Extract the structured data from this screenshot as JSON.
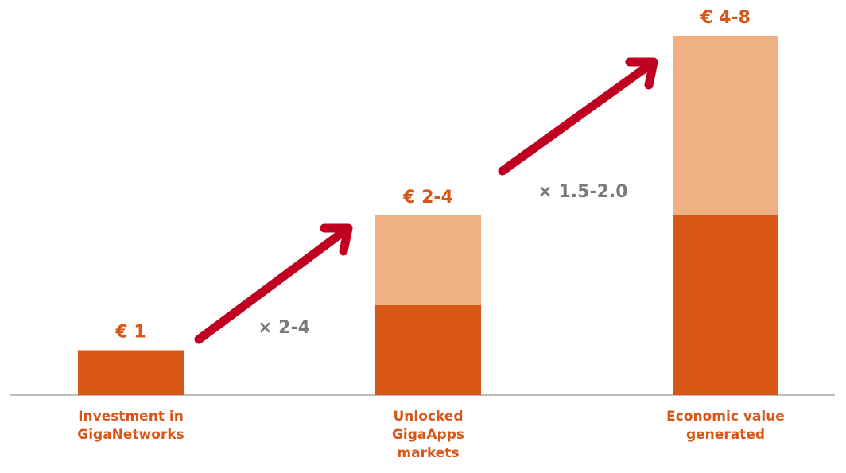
{
  "chart_data": {
    "type": "bar",
    "stacked": true,
    "categories": [
      "Investment in\nGigaNetworks",
      "Unlocked\nGigaApps\nmarkets",
      "Economic value\ngenerated"
    ],
    "series": [
      {
        "color": "#d95716",
        "values": [
          1,
          2,
          4
        ]
      },
      {
        "color": "#efb083",
        "values": [
          null,
          2,
          4
        ]
      }
    ],
    "bar_labels": [
      "€ 1",
      "€ 2-4",
      "€ 4-8"
    ],
    "annotations": [
      "× 2-4",
      "× 1.5-2.0"
    ],
    "ylim": [
      0,
      8
    ]
  }
}
